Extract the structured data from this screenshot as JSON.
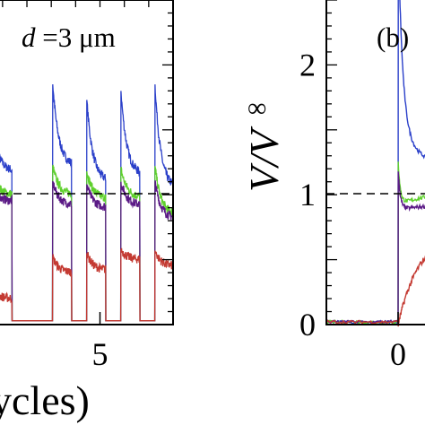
{
  "chart_data": [
    {
      "type": "line",
      "panel_label": "",
      "annotation": {
        "italic": "d",
        "rest": " =3 μm"
      },
      "xlabel": "ycles)",
      "ylabel": "",
      "xlim": [
        0.6,
        8.0
      ],
      "ylim": [
        0,
        2.5
      ],
      "xticks": [
        5
      ],
      "yticks": [],
      "reference_line": {
        "y": 1,
        "style": "dashed"
      },
      "cycle_starts": [
        3.05,
        4.45,
        5.85,
        7.25
      ],
      "cycle_start_first": 0.6,
      "series": [
        {
          "color": "#2a3fc9",
          "peaks": [
            1.5,
            1.85,
            1.73,
            1.8,
            1.85
          ],
          "ends": [
            1.18,
            1.22,
            1.1,
            1.15,
            1.05
          ],
          "before_first": 1.2
        },
        {
          "color": "#5fd02d",
          "peaks": [
            1.15,
            1.22,
            1.18,
            1.2,
            1.22
          ],
          "ends": [
            1.0,
            1.0,
            0.97,
            0.98,
            0.85
          ],
          "before_first": 1.0
        },
        {
          "color": "#5b1a86",
          "peaks": [
            1.05,
            1.1,
            1.08,
            1.1,
            1.1
          ],
          "ends": [
            0.95,
            0.92,
            0.9,
            0.92,
            0.82
          ],
          "before_first": 0.95
        },
        {
          "color": "#c43a32",
          "peaks": [
            0.27,
            0.52,
            0.55,
            0.58,
            0.57
          ],
          "ends": [
            0.2,
            0.4,
            0.42,
            0.5,
            0.45
          ],
          "before_first": 0.22
        }
      ]
    },
    {
      "type": "line",
      "panel_label": "(b)",
      "annotation": {
        "italic": "",
        "rest": ""
      },
      "xlabel": "",
      "ylabel": "V/V",
      "ylabel_superscript": "∞",
      "xlim": [
        -0.2,
        0.4
      ],
      "ylim": [
        0,
        2.5
      ],
      "xticks": [
        0
      ],
      "yticks": [
        0,
        1,
        2
      ],
      "reference_line": {
        "y": 1,
        "style": "dashed"
      },
      "series": [
        {
          "color": "#2a3fc9",
          "name": ""
        },
        {
          "color": "#5fd02d",
          "name": ""
        },
        {
          "color": "#5b1a86",
          "name": ""
        },
        {
          "color": "#c43a32",
          "name": ""
        }
      ]
    }
  ]
}
